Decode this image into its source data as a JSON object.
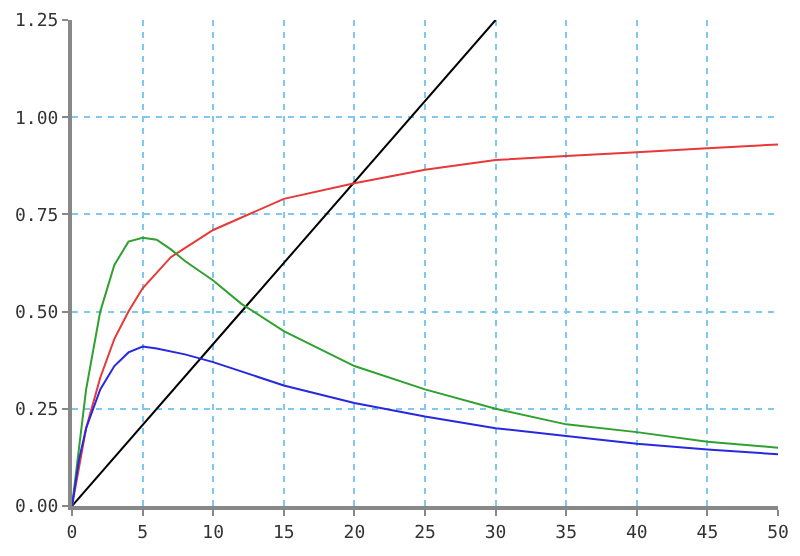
{
  "chart_data": {
    "type": "line",
    "xlim": [
      0,
      50
    ],
    "ylim": [
      0,
      1.25
    ],
    "xticks": [
      0,
      5,
      10,
      15,
      20,
      25,
      30,
      35,
      40,
      45,
      50
    ],
    "yticks": [
      {
        "value": 0,
        "label": "0.00"
      },
      {
        "value": 0.25,
        "label": "0.25"
      },
      {
        "value": 0.5,
        "label": "0.50"
      },
      {
        "value": 0.75,
        "label": "0.75"
      },
      {
        "value": 1,
        "label": "1.00"
      },
      {
        "value": 1.25,
        "label": "1.25"
      }
    ],
    "grid": true,
    "marker": "none",
    "line_style": "solid",
    "series": [
      {
        "color": "#000000",
        "x": [
          0,
          30
        ],
        "values": [
          0,
          1.25
        ]
      },
      {
        "color": "#e83838",
        "x": [
          0,
          1,
          2,
          3,
          4,
          5,
          7,
          10,
          15,
          20,
          25,
          30,
          35,
          40,
          45,
          50
        ],
        "values": [
          0,
          0.2,
          0.33,
          0.43,
          0.5,
          0.56,
          0.64,
          0.71,
          0.79,
          0.83,
          0.865,
          0.89,
          0.9,
          0.91,
          0.92,
          0.93
        ]
      },
      {
        "color": "#30a030",
        "x": [
          0,
          0.5,
          1,
          2,
          3,
          4,
          5,
          6,
          7,
          8,
          10,
          12,
          15,
          20,
          25,
          30,
          35,
          40,
          45,
          50
        ],
        "values": [
          0,
          0.15,
          0.3,
          0.5,
          0.62,
          0.68,
          0.69,
          0.685,
          0.66,
          0.63,
          0.58,
          0.52,
          0.45,
          0.36,
          0.3,
          0.25,
          0.21,
          0.19,
          0.165,
          0.15
        ]
      },
      {
        "color": "#2828e0",
        "x": [
          0,
          0.5,
          1,
          2,
          3,
          4,
          5,
          6,
          8,
          10,
          15,
          20,
          25,
          30,
          35,
          40,
          45,
          50
        ],
        "values": [
          0,
          0.12,
          0.2,
          0.3,
          0.36,
          0.395,
          0.41,
          0.405,
          0.39,
          0.37,
          0.31,
          0.265,
          0.23,
          0.2,
          0.18,
          0.16,
          0.145,
          0.133
        ]
      }
    ]
  }
}
